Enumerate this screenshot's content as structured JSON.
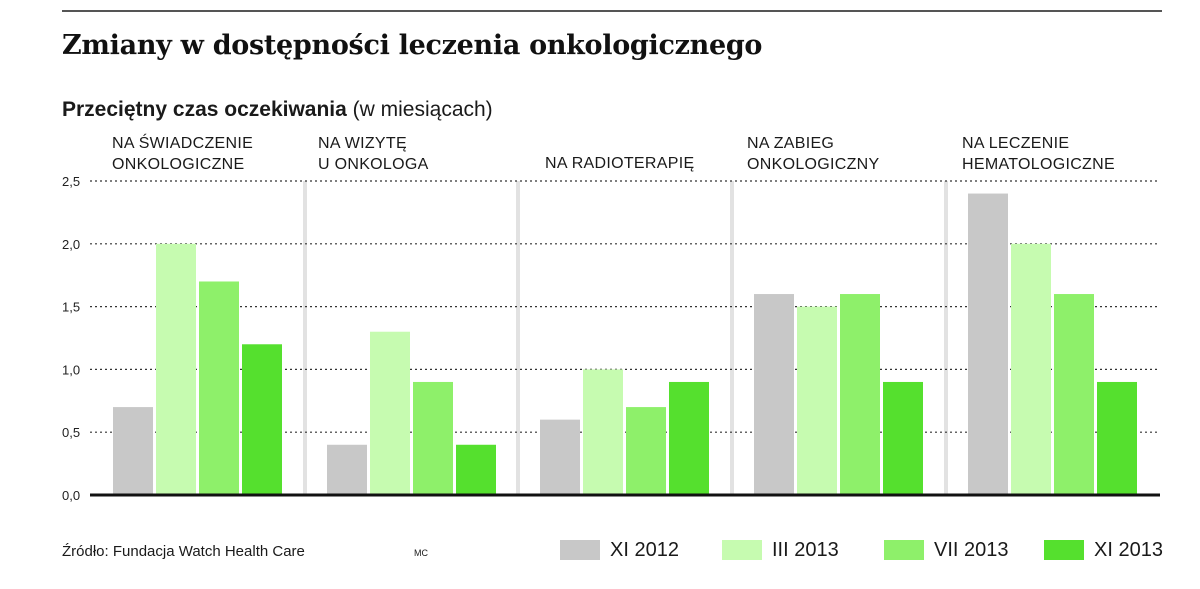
{
  "header": {
    "title": "Zmiany w dostępności leczenia onkologicznego",
    "subtitle_bold": "Przeciętny czas oczekiwania",
    "subtitle_rest": " (w miesiącach)"
  },
  "footer": {
    "source": "Źródło: Fundacja Watch Health Care",
    "credit": "MC"
  },
  "colors": {
    "XI 2012": "#c8c8c8",
    "III 2013": "#c6fbb0",
    "VII 2013": "#8ef06a",
    "XI 2013": "#55e02e"
  },
  "chart_data": {
    "type": "bar",
    "title": "Zmiany w dostępności leczenia onkologicznego",
    "ylabel": "Przeciętny czas oczekiwania (w miesiącach)",
    "ylim": [
      0,
      2.5
    ],
    "yticks": [
      "0,0",
      "0,5",
      "1,0",
      "1,5",
      "2,0",
      "2,5"
    ],
    "grid": true,
    "legend_position": "bottom-right",
    "categories": [
      [
        "NA ŚWIADCZENIE",
        "ONKOLOGICZNE"
      ],
      [
        "NA WIZYTĘ",
        "U ONKOLOGA"
      ],
      [
        "NA RADIOTERAPIĘ"
      ],
      [
        "NA ZABIEG",
        "ONKOLOGICZNY"
      ],
      [
        "NA LECZENIE",
        "HEMATOLOGICZNE"
      ]
    ],
    "series": [
      {
        "name": "XI 2012",
        "values": [
          0.7,
          0.4,
          0.6,
          1.6,
          2.4
        ]
      },
      {
        "name": "III 2013",
        "values": [
          2.0,
          1.3,
          1.0,
          1.5,
          2.0
        ]
      },
      {
        "name": "VII 2013",
        "values": [
          1.7,
          0.9,
          0.7,
          1.6,
          1.6
        ]
      },
      {
        "name": "XI 2013",
        "values": [
          1.2,
          0.4,
          0.9,
          0.9,
          0.9
        ]
      }
    ]
  }
}
